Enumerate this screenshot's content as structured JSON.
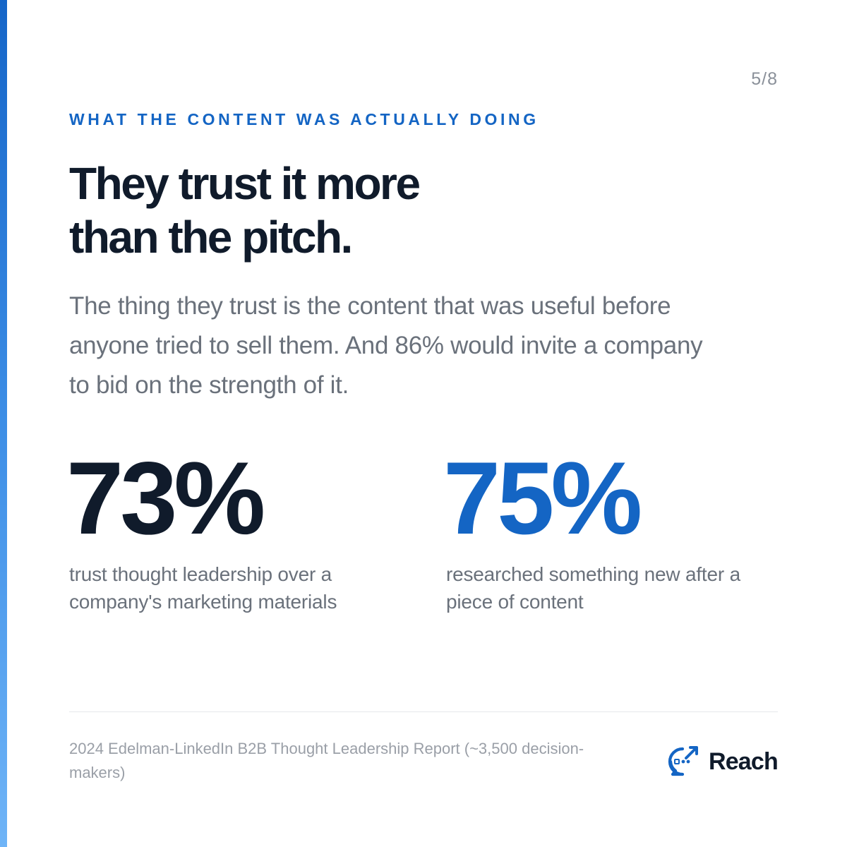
{
  "page_counter": "5/8",
  "eyebrow": "WHAT THE CONTENT WAS ACTUALLY DOING",
  "headline": {
    "line1": "They trust it more",
    "line2": "than the pitch."
  },
  "body": {
    "line1": "The thing they trust is the content that was useful before",
    "line2": "anyone tried to sell them. And 86% would invite a company",
    "line3": "to bid on the strength of it."
  },
  "stats": [
    {
      "value": "73%",
      "caption_line1": "trust thought leadership over a",
      "caption_line2": "company's marketing materials"
    },
    {
      "value": "75%",
      "caption_line1": "researched something new after a",
      "caption_line2": "piece of content"
    }
  ],
  "footer": {
    "source_line1": "2024 Edelman-LinkedIn B2B Thought Leadership Report (~3,500 decision-",
    "source_line2": "makers)",
    "brand_name": "Reach",
    "brand_icon": "chat-bubble-arrow-icon"
  },
  "colors": {
    "accent": "#1465c4",
    "headline": "#101b2b",
    "body": "#6a717b",
    "muted": "#9a9fa7"
  }
}
